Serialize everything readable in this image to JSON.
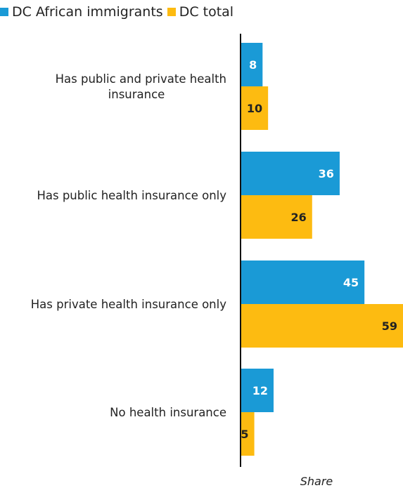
{
  "colors": {
    "african": "#1a9ad6",
    "total": "#fdbb11"
  },
  "legend": [
    {
      "label": "DC African immigrants",
      "color": "#1a9ad6"
    },
    {
      "label": "DC total",
      "color": "#fdbb11"
    }
  ],
  "chart_data": {
    "type": "bar",
    "orientation": "horizontal",
    "categories": [
      [
        "Has public and private health",
        "insurance"
      ],
      [
        "Has public health insurance only"
      ],
      [
        "Has private health insurance only"
      ],
      [
        "No health insurance"
      ]
    ],
    "series": [
      {
        "name": "DC African immigrants",
        "values": [
          8,
          36,
          45,
          12
        ],
        "color": "#1a9ad6"
      },
      {
        "name": "DC total",
        "values": [
          10,
          26,
          59,
          5
        ],
        "color": "#fdbb11"
      }
    ],
    "xlabel": "Share",
    "xlim": [
      0,
      59
    ],
    "grid": false,
    "legend_position": "top-left"
  }
}
